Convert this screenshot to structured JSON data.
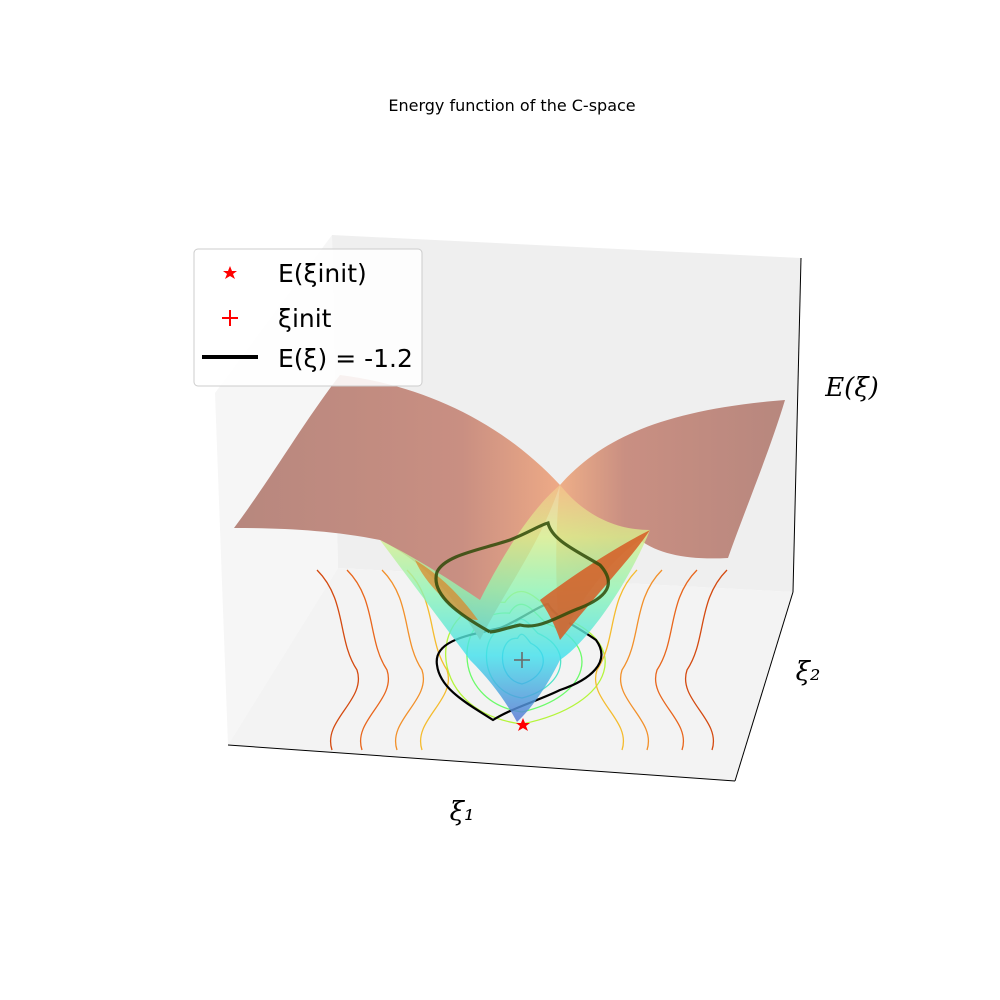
{
  "chart_data": {
    "type": "surface3d",
    "title": "Energy function of the C-space",
    "xlabel": "ξ₁",
    "ylabel": "ξ₂",
    "zlabel": "E(ξ)",
    "grid": false,
    "legend_position": "upper-left",
    "legend": [
      {
        "label": "E(ξinit)",
        "marker": "star",
        "color": "#ff0000"
      },
      {
        "label": "ξinit",
        "marker": "plus",
        "color": "#ff0000"
      },
      {
        "label": "E(ξ) = -1.2",
        "marker": "line",
        "color": "#000000"
      }
    ],
    "level_value": -1.2,
    "colormap": [
      "#30123b",
      "#4662d7",
      "#36aaf9",
      "#1ae4b6",
      "#72fe5e",
      "#c8ef34",
      "#faba39",
      "#f66b19",
      "#ca2a04",
      "#7a0403"
    ],
    "floor_contour_colors": [
      "#3ec8e0",
      "#50e3c8",
      "#6cfb6a",
      "#b4f53a",
      "#f5bb2e",
      "#f2902a",
      "#e8661c",
      "#d44a10",
      "#c03508"
    ]
  }
}
